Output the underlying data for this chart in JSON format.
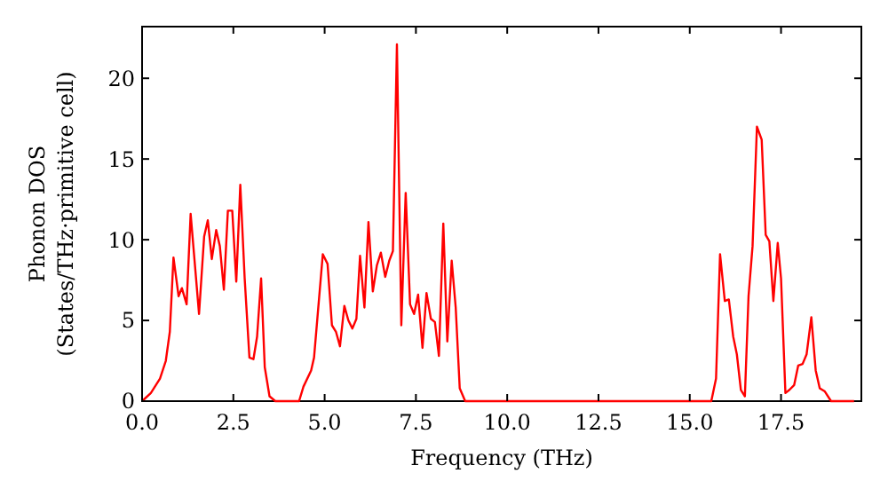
{
  "chart_data": {
    "type": "line",
    "xlabel": "Frequency (THz)",
    "ylabel": "Phonon DOS\n(States/THz·primitive cell)",
    "xlim": [
      0,
      19.7
    ],
    "ylim": [
      0,
      23.2
    ],
    "xticks": [
      {
        "value": 0,
        "label": "0.0"
      },
      {
        "value": 2.5,
        "label": "2.5"
      },
      {
        "value": 5,
        "label": "5.0"
      },
      {
        "value": 7.5,
        "label": "7.5"
      },
      {
        "value": 10,
        "label": "10.0"
      },
      {
        "value": 12.5,
        "label": "12.5"
      },
      {
        "value": 15,
        "label": "15.0"
      },
      {
        "value": 17.5,
        "label": "17.5"
      }
    ],
    "yticks": [
      0,
      5,
      10,
      15,
      20
    ],
    "grid": false,
    "marker": "none",
    "line_style": "solid",
    "x": [
      0,
      0.24,
      0.49,
      0.65,
      0.76,
      0.86,
      1.0,
      1.09,
      1.22,
      1.33,
      1.56,
      1.7,
      1.8,
      1.91,
      2.03,
      2.13,
      2.24,
      2.35,
      2.47,
      2.58,
      2.69,
      2.81,
      2.94,
      3.05,
      3.15,
      3.26,
      3.36,
      3.49,
      3.65,
      4.3,
      4.42,
      4.63,
      4.71,
      4.95,
      5.08,
      5.2,
      5.31,
      5.42,
      5.54,
      5.65,
      5.76,
      5.87,
      5.97,
      6.09,
      6.2,
      6.32,
      6.43,
      6.54,
      6.66,
      6.77,
      6.87,
      6.98,
      7.1,
      7.22,
      7.34,
      7.45,
      7.56,
      7.68,
      7.79,
      7.91,
      8.02,
      8.13,
      8.25,
      8.36,
      8.48,
      8.59,
      8.7,
      8.85,
      15.59,
      15.72,
      15.83,
      15.96,
      16.07,
      16.19,
      16.29,
      16.4,
      16.51,
      16.61,
      16.72,
      16.84,
      16.97,
      17.08,
      17.18,
      17.29,
      17.41,
      17.5,
      17.62,
      17.73,
      17.86,
      17.97,
      18.09,
      18.2,
      18.33,
      18.45,
      18.56,
      18.7,
      18.87,
      19.5
    ],
    "series": [
      {
        "color": "#ff0000",
        "values": [
          0,
          0.5,
          1.4,
          2.5,
          4.3,
          8.9,
          6.5,
          7.0,
          6.0,
          11.6,
          5.4,
          10.2,
          11.2,
          8.8,
          10.6,
          9.6,
          6.9,
          11.8,
          11.8,
          7.4,
          13.4,
          7.6,
          2.7,
          2.6,
          4.0,
          7.6,
          2.1,
          0.3,
          0,
          0,
          0.9,
          1.9,
          2.7,
          9.1,
          8.5,
          4.7,
          4.3,
          3.4,
          5.9,
          5.0,
          4.5,
          5.1,
          9.0,
          5.8,
          11.1,
          6.8,
          8.4,
          9.2,
          7.7,
          8.7,
          9.3,
          22.1,
          4.7,
          12.9,
          6.0,
          5.4,
          6.6,
          3.3,
          6.7,
          5.1,
          4.9,
          2.8,
          11.0,
          3.7,
          8.7,
          5.8,
          0.8,
          0,
          0,
          1.4,
          9.1,
          6.2,
          6.3,
          4.0,
          2.9,
          0.7,
          0.3,
          6.5,
          9.6,
          17.0,
          16.2,
          10.3,
          9.9,
          6.2,
          9.8,
          7.6,
          0.5,
          0.7,
          1.0,
          2.2,
          2.3,
          2.9,
          5.2,
          1.9,
          0.8,
          0.6,
          0,
          0
        ]
      }
    ]
  }
}
